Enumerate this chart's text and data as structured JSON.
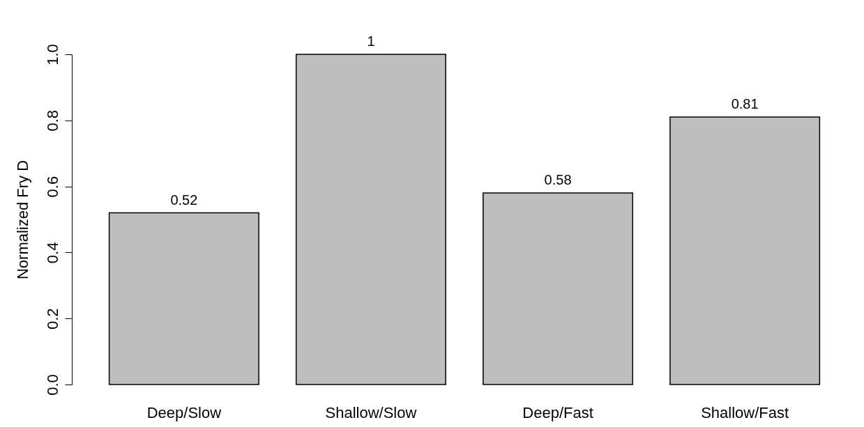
{
  "chart_data": {
    "type": "bar",
    "ylabel": "Normalized Fry D",
    "categories": [
      "Deep/Slow",
      "Shallow/Slow",
      "Deep/Fast",
      "Shallow/Fast"
    ],
    "values": [
      0.52,
      1,
      0.58,
      0.81
    ],
    "color": "#bebebe",
    "ylim": [
      0,
      1.0
    ],
    "yticks": [
      {
        "value": 0,
        "label": "0.0"
      },
      0.2,
      0.4,
      0.6,
      0.8,
      {
        "value": 1,
        "label": "1.0"
      }
    ],
    "data_labels": true,
    "grid": false
  }
}
